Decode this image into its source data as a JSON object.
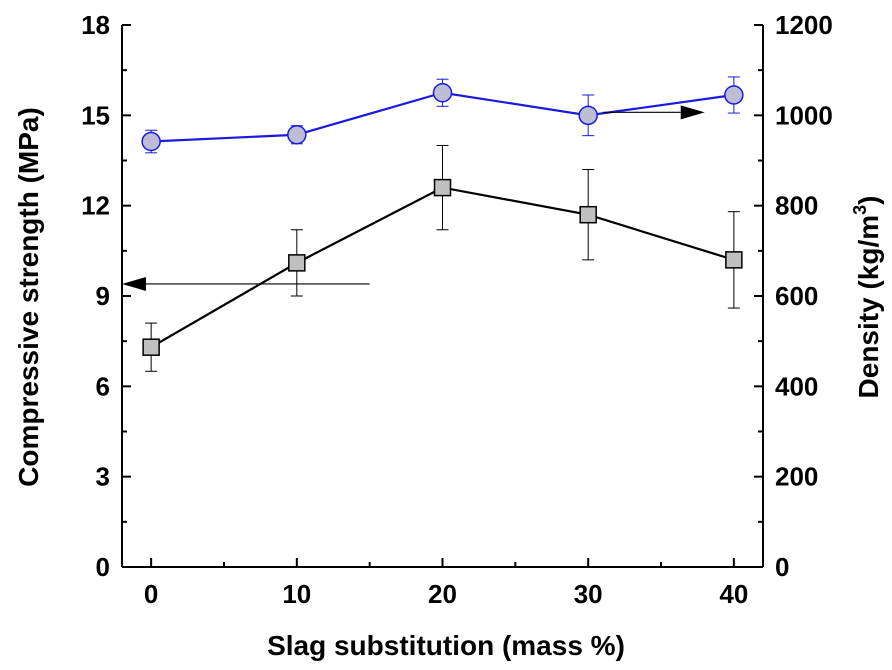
{
  "chart_data": {
    "type": "line",
    "xlabel": "Slag substitution (mass %)",
    "ylabel_left": "Compressive strength (MPa)",
    "ylabel_right_prefix": "Density (kg/m",
    "ylabel_right_superscript": "3",
    "ylabel_right_suffix": ")",
    "xlim": [
      -2,
      42
    ],
    "ylim_left": [
      0,
      18
    ],
    "ylim_right": [
      0,
      1200
    ],
    "xticks": [
      0,
      10,
      20,
      30,
      40
    ],
    "yticks_left": [
      0,
      3,
      6,
      9,
      12,
      15,
      18
    ],
    "yticks_right": [
      0,
      200,
      400,
      600,
      800,
      1000,
      1200
    ],
    "grid": false,
    "series": [
      {
        "axis": "left",
        "marker": "square",
        "color": "#000000",
        "marker_fill": "#c0c0c0",
        "x": [
          0,
          10,
          20,
          30,
          40
        ],
        "y": [
          7.3,
          10.1,
          12.6,
          11.7,
          10.2
        ],
        "error": [
          0.8,
          1.1,
          1.4,
          1.5,
          1.6
        ]
      },
      {
        "axis": "right",
        "marker": "circle",
        "color": "#1a1adc",
        "marker_fill": "#bdbdd6",
        "x": [
          0,
          10,
          20,
          30,
          40
        ],
        "y": [
          942,
          957,
          1050,
          1000,
          1045
        ],
        "error": [
          25,
          20,
          30,
          45,
          40
        ]
      }
    ],
    "annotations": [
      {
        "type": "arrow",
        "direction": "left",
        "points_to": "left-axis",
        "from_x": 15,
        "to_x": -2,
        "y_left": 9.4
      },
      {
        "type": "arrow",
        "direction": "right",
        "points_to": "right-axis",
        "from_x": 31,
        "to_x": 38,
        "y_left": 15.1
      }
    ]
  }
}
